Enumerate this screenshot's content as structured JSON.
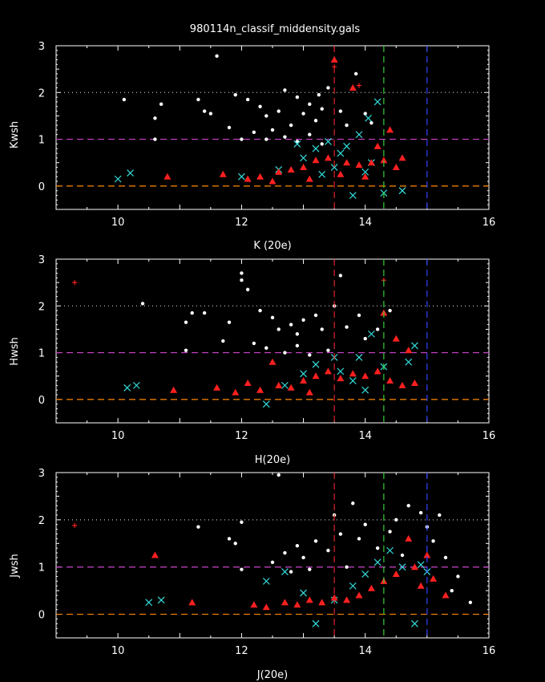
{
  "title": "980114n_classif_middensity.gals",
  "colors": {
    "background": "#000000",
    "frame": "#ffffff",
    "white_points": "#ffffff",
    "cyan_crosses": "#33dddd",
    "red_points": "#ff2020",
    "line_red": "#dd2222",
    "line_green": "#33cc33",
    "line_blue": "#3344ff",
    "line_magenta": "#cc44cc",
    "line_orange": "#ff8800",
    "line_dotted": "#bbbbbb"
  },
  "chart_data": [
    {
      "type": "scatter",
      "xlabel": "K (20e)",
      "ylabel": "Kwsh",
      "xlim": [
        9,
        16
      ],
      "ylim": [
        -0.5,
        3
      ],
      "xticks": [
        10,
        12,
        14,
        16
      ],
      "yticks": [
        0,
        1,
        2,
        3
      ],
      "reference_lines": {
        "horizontal": [
          0,
          1,
          2
        ],
        "vertical": [
          13.5,
          14.3,
          15
        ]
      },
      "series": [
        {
          "marker": "dot",
          "color": "white",
          "points": [
            [
              10.1,
              1.85
            ],
            [
              10.7,
              1.75
            ],
            [
              10.6,
              1.45
            ],
            [
              10.6,
              1.0
            ],
            [
              11.3,
              1.85
            ],
            [
              11.6,
              2.78
            ],
            [
              11.5,
              1.55
            ],
            [
              11.9,
              1.95
            ],
            [
              12.1,
              1.85
            ],
            [
              12.3,
              1.7
            ],
            [
              12.4,
              1.5
            ],
            [
              12.6,
              1.6
            ],
            [
              12.8,
              1.3
            ],
            [
              12.9,
              1.9
            ],
            [
              13.0,
              1.55
            ],
            [
              13.1,
              1.75
            ],
            [
              13.2,
              1.4
            ],
            [
              13.3,
              1.65
            ],
            [
              13.4,
              2.1
            ],
            [
              13.6,
              1.6
            ],
            [
              13.7,
              1.3
            ],
            [
              13.85,
              2.4
            ],
            [
              14.0,
              1.55
            ],
            [
              14.1,
              1.35
            ],
            [
              12.2,
              1.15
            ],
            [
              12.4,
              1.0
            ],
            [
              12.5,
              1.2
            ],
            [
              12.7,
              1.05
            ],
            [
              12.9,
              0.95
            ],
            [
              13.1,
              1.1
            ],
            [
              13.3,
              0.9
            ],
            [
              11.8,
              1.25
            ],
            [
              12.0,
              1.0
            ],
            [
              11.4,
              1.6
            ],
            [
              13.25,
              1.95
            ],
            [
              12.7,
              2.05
            ]
          ]
        },
        {
          "marker": "x",
          "color": "cyan",
          "points": [
            [
              10.0,
              0.15
            ],
            [
              10.2,
              0.28
            ],
            [
              12.0,
              0.2
            ],
            [
              12.6,
              0.35
            ],
            [
              13.0,
              0.6
            ],
            [
              13.2,
              0.8
            ],
            [
              13.4,
              0.95
            ],
            [
              13.6,
              0.7
            ],
            [
              13.8,
              -0.2
            ],
            [
              14.0,
              0.3
            ],
            [
              14.2,
              1.8
            ],
            [
              14.3,
              -0.15
            ],
            [
              14.6,
              -0.1
            ],
            [
              13.9,
              1.1
            ],
            [
              14.1,
              0.5
            ],
            [
              13.5,
              0.4
            ],
            [
              12.9,
              0.9
            ],
            [
              13.7,
              0.85
            ],
            [
              14.05,
              1.45
            ],
            [
              13.3,
              0.25
            ]
          ]
        },
        {
          "marker": "triangle",
          "color": "red",
          "points": [
            [
              10.8,
              0.2
            ],
            [
              11.7,
              0.25
            ],
            [
              12.1,
              0.15
            ],
            [
              12.3,
              0.2
            ],
            [
              12.6,
              0.3
            ],
            [
              12.8,
              0.35
            ],
            [
              13.0,
              0.4
            ],
            [
              13.2,
              0.55
            ],
            [
              13.4,
              0.6
            ],
            [
              13.5,
              2.7
            ],
            [
              13.7,
              0.5
            ],
            [
              13.9,
              0.45
            ],
            [
              14.1,
              0.5
            ],
            [
              14.3,
              0.55
            ],
            [
              14.5,
              0.4
            ],
            [
              14.6,
              0.6
            ],
            [
              14.4,
              1.2
            ],
            [
              13.8,
              2.1
            ],
            [
              12.5,
              0.1
            ],
            [
              13.1,
              0.15
            ],
            [
              13.6,
              0.25
            ],
            [
              14.0,
              0.2
            ],
            [
              14.2,
              0.85
            ]
          ]
        },
        {
          "marker": "plus",
          "color": "red",
          "points": [
            [
              13.5,
              2.55
            ],
            [
              13.9,
              2.15
            ]
          ]
        }
      ]
    },
    {
      "type": "scatter",
      "xlabel": "H(20e)",
      "ylabel": "Hwsh",
      "xlim": [
        9,
        16
      ],
      "ylim": [
        -0.5,
        3
      ],
      "xticks": [
        10,
        12,
        14,
        16
      ],
      "yticks": [
        0,
        1,
        2,
        3
      ],
      "reference_lines": {
        "horizontal": [
          0,
          1,
          2
        ],
        "vertical": [
          13.5,
          14.3,
          15
        ]
      },
      "series": [
        {
          "marker": "dot",
          "color": "white",
          "points": [
            [
              10.4,
              2.05
            ],
            [
              11.1,
              1.65
            ],
            [
              11.2,
              1.85
            ],
            [
              11.4,
              1.85
            ],
            [
              11.1,
              1.05
            ],
            [
              11.8,
              1.65
            ],
            [
              12.0,
              2.7
            ],
            [
              12.0,
              2.55
            ],
            [
              12.3,
              1.9
            ],
            [
              12.5,
              1.75
            ],
            [
              12.6,
              1.5
            ],
            [
              12.8,
              1.6
            ],
            [
              12.9,
              1.4
            ],
            [
              13.0,
              1.7
            ],
            [
              13.2,
              1.8
            ],
            [
              13.3,
              1.5
            ],
            [
              13.5,
              2.0
            ],
            [
              13.7,
              1.55
            ],
            [
              13.9,
              1.8
            ],
            [
              14.0,
              1.3
            ],
            [
              14.2,
              1.5
            ],
            [
              14.4,
              1.9
            ],
            [
              12.2,
              1.2
            ],
            [
              12.4,
              1.1
            ],
            [
              12.7,
              1.0
            ],
            [
              12.9,
              1.15
            ],
            [
              13.1,
              0.95
            ],
            [
              13.4,
              1.05
            ],
            [
              11.7,
              1.25
            ],
            [
              13.6,
              2.65
            ],
            [
              12.1,
              2.35
            ]
          ]
        },
        {
          "marker": "x",
          "color": "cyan",
          "points": [
            [
              10.15,
              0.25
            ],
            [
              10.3,
              0.3
            ],
            [
              12.4,
              -0.1
            ],
            [
              12.7,
              0.3
            ],
            [
              13.0,
              0.55
            ],
            [
              13.2,
              0.75
            ],
            [
              13.5,
              0.9
            ],
            [
              13.8,
              0.4
            ],
            [
              14.0,
              0.2
            ],
            [
              14.1,
              1.4
            ],
            [
              14.3,
              0.7
            ],
            [
              14.8,
              1.15
            ],
            [
              14.7,
              0.8
            ],
            [
              13.9,
              0.9
            ],
            [
              13.6,
              0.6
            ]
          ]
        },
        {
          "marker": "triangle",
          "color": "red",
          "points": [
            [
              10.9,
              0.2
            ],
            [
              11.6,
              0.25
            ],
            [
              11.9,
              0.15
            ],
            [
              12.1,
              0.35
            ],
            [
              12.3,
              0.2
            ],
            [
              12.6,
              0.3
            ],
            [
              12.8,
              0.25
            ],
            [
              13.0,
              0.4
            ],
            [
              13.2,
              0.5
            ],
            [
              13.4,
              0.6
            ],
            [
              13.6,
              0.45
            ],
            [
              13.8,
              0.55
            ],
            [
              14.0,
              0.5
            ],
            [
              14.2,
              0.6
            ],
            [
              14.4,
              0.4
            ],
            [
              14.6,
              0.3
            ],
            [
              14.8,
              0.35
            ],
            [
              14.3,
              1.85
            ],
            [
              14.5,
              1.3
            ],
            [
              14.7,
              1.05
            ],
            [
              12.5,
              0.8
            ],
            [
              13.1,
              0.15
            ]
          ]
        },
        {
          "marker": "plus",
          "color": "red",
          "points": [
            [
              9.3,
              2.5
            ],
            [
              14.3,
              2.55
            ]
          ]
        }
      ]
    },
    {
      "type": "scatter",
      "xlabel": "J(20e)",
      "ylabel": "Jwsh",
      "xlim": [
        9,
        16
      ],
      "ylim": [
        -0.5,
        3
      ],
      "xticks": [
        10,
        12,
        14,
        16
      ],
      "yticks": [
        0,
        1,
        2,
        3
      ],
      "reference_lines": {
        "horizontal": [
          0,
          1,
          2
        ],
        "vertical": [
          13.5,
          14.3,
          15
        ]
      },
      "series": [
        {
          "marker": "dot",
          "color": "white",
          "points": [
            [
              11.3,
              1.85
            ],
            [
              11.8,
              1.6
            ],
            [
              11.9,
              1.5
            ],
            [
              12.0,
              1.95
            ],
            [
              12.0,
              0.95
            ],
            [
              12.5,
              1.1
            ],
            [
              12.6,
              2.95
            ],
            [
              12.7,
              1.3
            ],
            [
              12.9,
              1.45
            ],
            [
              13.0,
              1.2
            ],
            [
              13.2,
              1.55
            ],
            [
              13.4,
              1.35
            ],
            [
              13.5,
              2.1
            ],
            [
              13.6,
              1.7
            ],
            [
              13.8,
              2.35
            ],
            [
              13.9,
              1.6
            ],
            [
              14.0,
              1.9
            ],
            [
              14.2,
              1.4
            ],
            [
              14.4,
              1.75
            ],
            [
              14.5,
              2.0
            ],
            [
              14.7,
              2.3
            ],
            [
              14.9,
              2.15
            ],
            [
              15.0,
              1.85
            ],
            [
              15.1,
              1.55
            ],
            [
              15.3,
              1.2
            ],
            [
              15.5,
              0.8
            ],
            [
              15.7,
              0.25
            ],
            [
              15.4,
              0.5
            ],
            [
              14.6,
              1.25
            ],
            [
              13.7,
              1.0
            ],
            [
              13.1,
              0.95
            ],
            [
              12.8,
              0.9
            ],
            [
              15.2,
              2.1
            ]
          ]
        },
        {
          "marker": "x",
          "color": "cyan",
          "points": [
            [
              10.5,
              0.25
            ],
            [
              10.7,
              0.3
            ],
            [
              12.4,
              0.7
            ],
            [
              12.7,
              0.9
            ],
            [
              13.0,
              0.45
            ],
            [
              13.2,
              -0.2
            ],
            [
              13.5,
              0.3
            ],
            [
              13.8,
              0.6
            ],
            [
              14.0,
              0.85
            ],
            [
              14.2,
              1.1
            ],
            [
              14.4,
              1.35
            ],
            [
              14.6,
              1.0
            ],
            [
              14.8,
              -0.2
            ],
            [
              14.9,
              1.05
            ],
            [
              15.0,
              0.9
            ]
          ]
        },
        {
          "marker": "triangle",
          "color": "red",
          "points": [
            [
              10.6,
              1.25
            ],
            [
              11.2,
              0.25
            ],
            [
              12.2,
              0.2
            ],
            [
              12.4,
              0.15
            ],
            [
              12.7,
              0.25
            ],
            [
              12.9,
              0.2
            ],
            [
              13.1,
              0.3
            ],
            [
              13.3,
              0.25
            ],
            [
              13.5,
              0.35
            ],
            [
              13.7,
              0.3
            ],
            [
              13.9,
              0.4
            ],
            [
              14.1,
              0.55
            ],
            [
              14.3,
              0.7
            ],
            [
              14.5,
              0.85
            ],
            [
              14.7,
              1.6
            ],
            [
              14.9,
              0.6
            ],
            [
              15.1,
              0.75
            ],
            [
              15.3,
              0.4
            ],
            [
              14.8,
              1.0
            ],
            [
              15.0,
              1.25
            ]
          ]
        },
        {
          "marker": "plus",
          "color": "red",
          "points": [
            [
              9.3,
              1.88
            ]
          ]
        }
      ]
    }
  ]
}
